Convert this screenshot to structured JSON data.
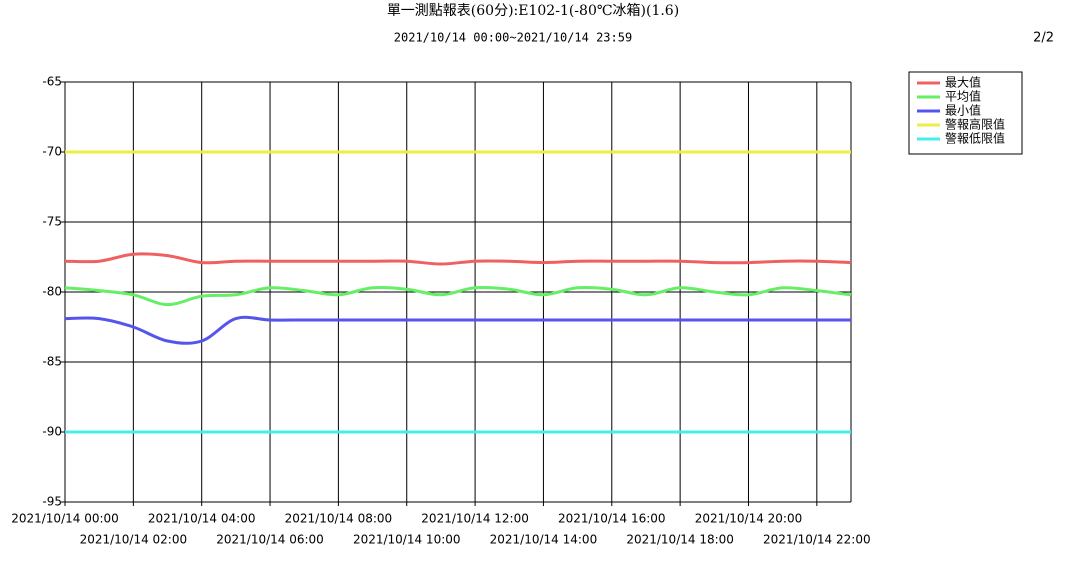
{
  "chart_data": {
    "type": "line",
    "title": "單一測點報表(60分):E102-1(-80℃冰箱)(1.6)",
    "subtitle": "2021/10/14 00:00~2021/10/14 23:59",
    "page": "2/2",
    "categories": [
      "2021/10/14 00:00",
      null,
      "2021/10/14 02:00",
      null,
      "2021/10/14 04:00",
      null,
      "2021/10/14 06:00",
      null,
      "2021/10/14 08:00",
      null,
      "2021/10/14 10:00",
      null,
      "2021/10/14 12:00",
      null,
      "2021/10/14 14:00",
      null,
      "2021/10/14 16:00",
      null,
      "2021/10/14 18:00",
      null,
      "2021/10/14 20:00",
      null,
      "2021/10/14 22:00",
      null
    ],
    "series": [
      {
        "name": "最大值",
        "color": "#f06060",
        "values": [
          -77.8,
          -77.8,
          -77.3,
          -77.4,
          -77.9,
          -77.8,
          -77.8,
          -77.8,
          -77.8,
          -77.8,
          -77.8,
          -78.0,
          -77.8,
          -77.8,
          -77.9,
          -77.8,
          -77.8,
          -77.8,
          -77.8,
          -77.9,
          -77.9,
          -77.8,
          -77.8,
          -77.9
        ]
      },
      {
        "name": "平均值",
        "color": "#66ee66",
        "values": [
          -79.7,
          -79.9,
          -80.2,
          -80.9,
          -80.3,
          -80.2,
          -79.7,
          -79.9,
          -80.2,
          -79.7,
          -79.8,
          -80.2,
          -79.7,
          -79.8,
          -80.2,
          -79.7,
          -79.8,
          -80.2,
          -79.7,
          -80.0,
          -80.2,
          -79.7,
          -79.9,
          -80.2
        ]
      },
      {
        "name": "最小值",
        "color": "#5555ee",
        "values": [
          -81.9,
          -81.9,
          -82.5,
          -83.5,
          -83.5,
          -81.9,
          -82,
          -82,
          -82,
          -82,
          -82,
          -82,
          -82,
          -82,
          -82,
          -82,
          -82,
          -82,
          -82,
          -82,
          -82,
          -82,
          -82,
          -82
        ]
      },
      {
        "name": "警報高限值",
        "color": "#eeee44",
        "values": [
          -70,
          -70,
          -70,
          -70,
          -70,
          -70,
          -70,
          -70,
          -70,
          -70,
          -70,
          -70,
          -70,
          -70,
          -70,
          -70,
          -70,
          -70,
          -70,
          -70,
          -70,
          -70,
          -70,
          -70
        ]
      },
      {
        "name": "警報低限值",
        "color": "#44eeee",
        "values": [
          -90,
          -90,
          -90,
          -90,
          -90,
          -90,
          -90,
          -90,
          -90,
          -90,
          -90,
          -90,
          -90,
          -90,
          -90,
          -90,
          -90,
          -90,
          -90,
          -90,
          -90,
          -90,
          -90,
          -90
        ]
      }
    ],
    "ylim": [
      -95,
      -65
    ],
    "yticks": [
      -95,
      -90,
      -85,
      -80,
      -75,
      -70,
      -65
    ],
    "grid": true
  }
}
